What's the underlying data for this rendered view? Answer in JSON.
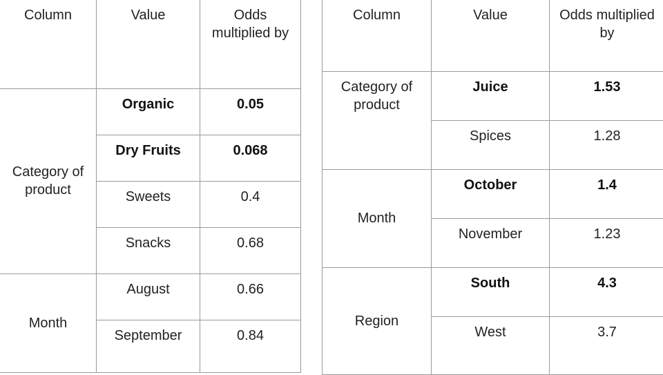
{
  "headers": [
    "Column",
    "Value",
    "Odds multiplied by"
  ],
  "left_table": {
    "groups": [
      {
        "column": "Category of product",
        "rows": [
          {
            "value": "Organic",
            "odds": "0.05",
            "bold": true
          },
          {
            "value": "Dry Fruits",
            "odds": "0.068",
            "bold": true
          },
          {
            "value": "Sweets",
            "odds": "0.4",
            "bold": false
          },
          {
            "value": "Snacks",
            "odds": "0.68",
            "bold": false
          }
        ]
      },
      {
        "column": "Month",
        "rows": [
          {
            "value": "August",
            "odds": "0.66",
            "bold": false
          },
          {
            "value": "September",
            "odds": "0.84",
            "bold": false
          }
        ]
      }
    ]
  },
  "right_table": {
    "groups": [
      {
        "column": "Category of product",
        "rows": [
          {
            "value": "Juice",
            "odds": "1.53",
            "bold": true
          },
          {
            "value": "Spices",
            "odds": "1.28",
            "bold": false
          }
        ]
      },
      {
        "column": "Month",
        "rows": [
          {
            "value": "October",
            "odds": "1.4",
            "bold": true
          },
          {
            "value": "November",
            "odds": "1.23",
            "bold": false
          }
        ]
      },
      {
        "column": "Region",
        "rows": [
          {
            "value": "South",
            "odds": "4.3",
            "bold": true
          },
          {
            "value": "West",
            "odds": "3.7",
            "bold": false
          }
        ]
      }
    ]
  },
  "colors": {
    "border": "#9a9a9a",
    "text": "#222222",
    "background": "#ffffff"
  }
}
